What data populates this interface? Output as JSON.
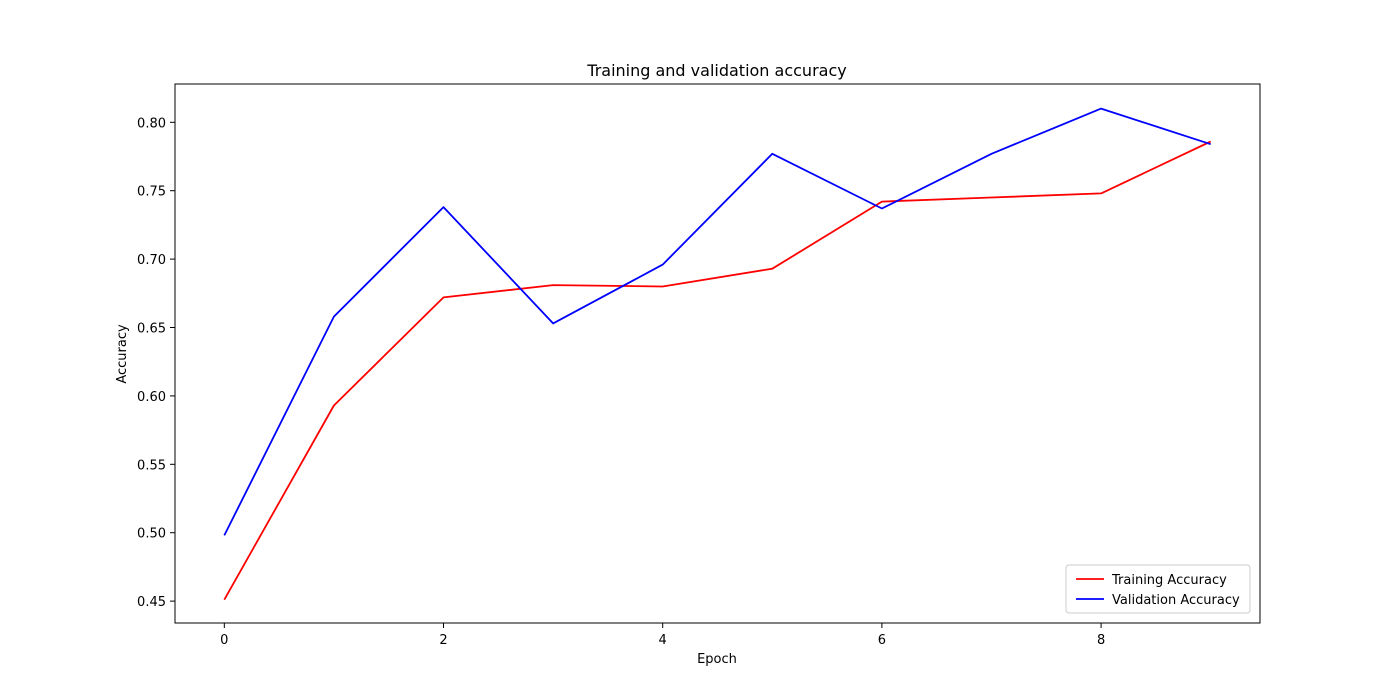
{
  "chart_data": {
    "type": "line",
    "title": "Training and validation accuracy",
    "xlabel": "Epoch",
    "ylabel": "Accuracy",
    "x": [
      0,
      1,
      2,
      3,
      4,
      5,
      6,
      7,
      8,
      9
    ],
    "xlim": [
      -0.45,
      9.45
    ],
    "ylim": [
      0.434,
      0.828
    ],
    "xticks": [
      0,
      2,
      4,
      6,
      8
    ],
    "xtick_labels": [
      "0",
      "2",
      "4",
      "6",
      "8"
    ],
    "yticks": [
      0.45,
      0.5,
      0.55,
      0.6,
      0.65,
      0.7,
      0.75,
      0.8
    ],
    "ytick_labels": [
      "0.45",
      "0.50",
      "0.55",
      "0.60",
      "0.65",
      "0.70",
      "0.75",
      "0.80"
    ],
    "grid": false,
    "legend_position": "bottom-right",
    "series": [
      {
        "name": "Training Accuracy",
        "color": "#ff0000",
        "values": [
          0.451,
          0.593,
          0.672,
          0.681,
          0.68,
          0.693,
          0.742,
          0.745,
          0.748,
          0.786
        ]
      },
      {
        "name": "Validation Accuracy",
        "color": "#0000ff",
        "values": [
          0.498,
          0.658,
          0.738,
          0.653,
          0.696,
          0.777,
          0.737,
          0.777,
          0.81,
          0.784
        ]
      }
    ]
  }
}
